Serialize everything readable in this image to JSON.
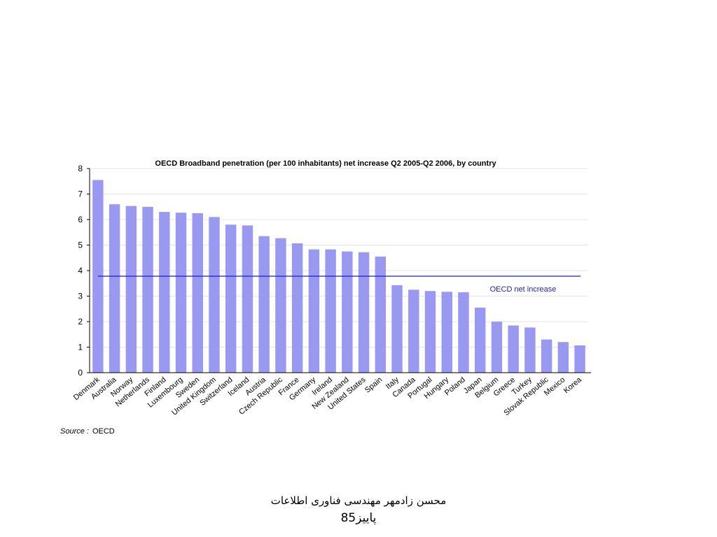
{
  "chart_data": {
    "type": "bar",
    "title": "OECD Broadband penetration (per 100 inhabitants) net increase Q2 2005-Q2 2006, by country",
    "xlabel": "",
    "ylabel": "",
    "ylim": [
      0,
      8
    ],
    "yticks": [
      "0",
      "1",
      "2",
      "3",
      "4",
      "5",
      "6",
      "7",
      "8"
    ],
    "grid": true,
    "bar_color": "#9999f2",
    "categories": [
      "Denmark",
      "Australia",
      "Norway",
      "Netherlands",
      "Finland",
      "Luxembourg",
      "Sweden",
      "United Kingdom",
      "Switzerland",
      "Iceland",
      "Austria",
      "Czech Republic",
      "France",
      "Germany",
      "Ireland",
      "New Zealand",
      "United States",
      "Spain",
      "Italy",
      "Canada",
      "Portugal",
      "Hungary",
      "Poland",
      "Japan",
      "Belgium",
      "Greece",
      "Turkey",
      "Slovak Republic",
      "Mexico",
      "Korea"
    ],
    "values": [
      7.55,
      6.6,
      6.53,
      6.5,
      6.3,
      6.27,
      6.25,
      6.1,
      5.8,
      5.77,
      5.35,
      5.27,
      5.07,
      4.83,
      4.83,
      4.75,
      4.72,
      4.55,
      3.43,
      3.25,
      3.2,
      3.17,
      3.15,
      2.55,
      2.0,
      1.85,
      1.77,
      1.3,
      1.2,
      1.07
    ],
    "reference_line": {
      "label": "OECD net increase",
      "value": 3.78,
      "color": "#1f1fb8"
    }
  },
  "source": {
    "label": "Source :",
    "value": "OECD"
  },
  "footer": {
    "line1": "محسن زادمهر     مهندسی فناوری اطلاعات",
    "line2": "پاییز85"
  }
}
